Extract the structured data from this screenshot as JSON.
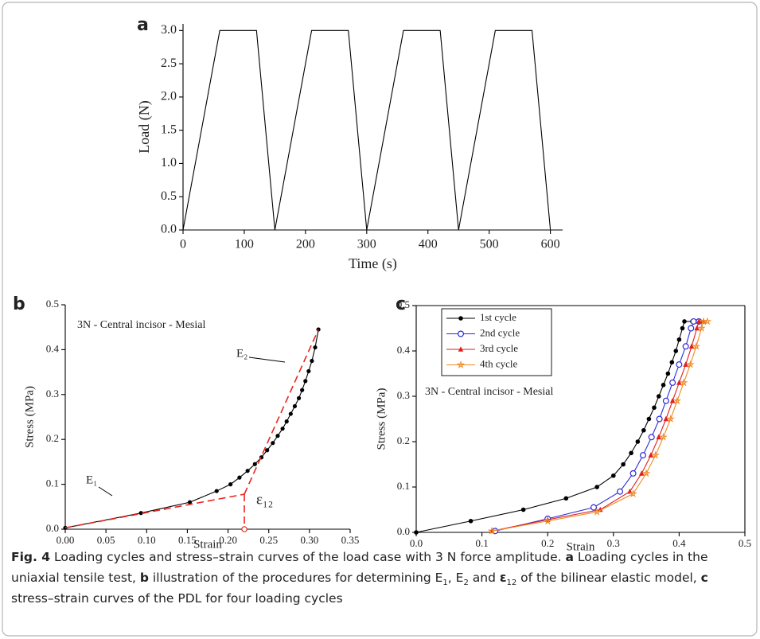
{
  "chart_data": [
    {
      "type": "line",
      "panel": "a",
      "x_label": "Time (s)",
      "y_label": "Load (N)",
      "xlim": [
        0,
        620
      ],
      "ylim": [
        0,
        3.1
      ],
      "xticks": [
        0,
        100,
        200,
        300,
        400,
        500,
        600
      ],
      "yticks": [
        {
          "value": 0,
          "label": "0.0"
        },
        0.5,
        {
          "value": 1,
          "label": "1.0"
        },
        1.5,
        {
          "value": 2,
          "label": "2.0"
        },
        2.5,
        {
          "value": 3,
          "label": "3.0"
        }
      ],
      "series": [
        {
          "color": "#000000",
          "marker": "none",
          "x": [
            0,
            60,
            120,
            150,
            210,
            270,
            300,
            360,
            420,
            450,
            510,
            570,
            600
          ],
          "values": [
            0,
            3,
            3,
            0,
            3,
            3,
            0,
            3,
            3,
            0,
            3,
            3,
            0
          ]
        }
      ]
    },
    {
      "type": "line",
      "panel": "b",
      "x_label": "Strain",
      "y_label": "Stress (MPa)",
      "xlim": [
        0,
        0.35
      ],
      "ylim": [
        0,
        0.5
      ],
      "xticks": [
        {
          "value": 0,
          "label": "0.00"
        },
        0.05,
        {
          "value": 0.1,
          "label": "0.10"
        },
        0.15,
        {
          "value": 0.2,
          "label": "0.20"
        },
        0.25,
        {
          "value": 0.3,
          "label": "0.30"
        },
        0.35
      ],
      "yticks": [
        {
          "value": 0,
          "label": "0.0"
        },
        0.1,
        0.2,
        0.3,
        0.4,
        0.5
      ],
      "annotations": [
        "3N - Central incisor - Mesial",
        "E₁",
        "E₂",
        "ε₁₂"
      ],
      "series": [
        {
          "color": "#000000",
          "marker": "circle",
          "x": [
            0,
            0.093,
            0.153,
            0.186,
            0.203,
            0.214,
            0.224,
            0.233,
            0.241,
            0.248,
            0.255,
            0.261,
            0.267,
            0.272,
            0.277,
            0.282,
            0.287,
            0.291,
            0.295,
            0.299,
            0.303,
            0.307,
            0.311
          ],
          "values": [
            0.003,
            0.036,
            0.06,
            0.085,
            0.1,
            0.115,
            0.13,
            0.145,
            0.16,
            0.176,
            0.192,
            0.208,
            0.224,
            0.24,
            0.257,
            0.274,
            0.292,
            0.31,
            0.33,
            0.352,
            0.375,
            0.405,
            0.445
          ]
        },
        {
          "color": "#e8251f",
          "marker": "none",
          "dashed": true,
          "x": [
            0,
            0.22
          ],
          "values": [
            0.003,
            0.078
          ]
        },
        {
          "color": "#e8251f",
          "marker": "none",
          "dashed": true,
          "x": [
            0.22,
            0.311
          ],
          "values": [
            0.078,
            0.445
          ]
        },
        {
          "color": "#e8251f",
          "marker": "none",
          "dashed": true,
          "x": [
            0.22,
            0.22
          ],
          "values": [
            0.078,
            0
          ]
        },
        {
          "color": "#e8251f",
          "marker": "open-circle",
          "x": [
            0.22
          ],
          "values": [
            0
          ]
        }
      ]
    },
    {
      "type": "line",
      "panel": "c",
      "x_label": "Strain",
      "y_label": "Stress (MPa)",
      "xlim": [
        0,
        0.5
      ],
      "ylim": [
        0,
        0.5
      ],
      "legend": "upper left",
      "frame": true,
      "xticks": [
        {
          "value": 0,
          "label": "0.0"
        },
        0.1,
        0.2,
        0.3,
        0.4,
        0.5
      ],
      "yticks": [
        {
          "value": 0,
          "label": "0.0"
        },
        0.1,
        0.2,
        0.3,
        0.4,
        0.5
      ],
      "annotations": [
        "3N - Central incisor - Mesial"
      ],
      "series": [
        {
          "name": "1st cycle",
          "color": "#000000",
          "marker": "circle",
          "x": [
            0,
            0.083,
            0.163,
            0.228,
            0.275,
            0.3,
            0.315,
            0.327,
            0.337,
            0.346,
            0.354,
            0.362,
            0.369,
            0.376,
            0.383,
            0.389,
            0.395,
            0.4,
            0.405,
            0.408,
            0.42
          ],
          "values": [
            0,
            0.025,
            0.05,
            0.075,
            0.1,
            0.125,
            0.15,
            0.175,
            0.2,
            0.225,
            0.25,
            0.275,
            0.3,
            0.325,
            0.35,
            0.375,
            0.4,
            0.425,
            0.45,
            0.465,
            0.465
          ]
        },
        {
          "name": "2nd cycle",
          "color": "#2b2bd6",
          "marker": "open-circle",
          "x": [
            0.12,
            0.2,
            0.27,
            0.31,
            0.33,
            0.345,
            0.358,
            0.37,
            0.38,
            0.39,
            0.4,
            0.41,
            0.418,
            0.422,
            0.43
          ],
          "values": [
            0.003,
            0.03,
            0.055,
            0.09,
            0.13,
            0.17,
            0.21,
            0.25,
            0.29,
            0.33,
            0.37,
            0.41,
            0.45,
            0.465,
            0.465
          ]
        },
        {
          "name": "3rd cycle",
          "color": "#e01e1e",
          "marker": "triangle",
          "x": [
            0.115,
            0.2,
            0.28,
            0.325,
            0.343,
            0.357,
            0.369,
            0.38,
            0.39,
            0.4,
            0.41,
            0.419,
            0.427,
            0.43,
            0.437
          ],
          "values": [
            0.003,
            0.028,
            0.05,
            0.09,
            0.13,
            0.17,
            0.21,
            0.25,
            0.29,
            0.33,
            0.37,
            0.41,
            0.45,
            0.465,
            0.465
          ]
        },
        {
          "name": "4th cycle",
          "color": "#f08a24",
          "marker": "star",
          "x": [
            0.115,
            0.2,
            0.275,
            0.33,
            0.35,
            0.364,
            0.376,
            0.387,
            0.397,
            0.407,
            0.417,
            0.426,
            0.434,
            0.437,
            0.443
          ],
          "values": [
            0.003,
            0.025,
            0.045,
            0.085,
            0.13,
            0.17,
            0.21,
            0.25,
            0.29,
            0.33,
            0.37,
            0.41,
            0.45,
            0.465,
            0.465
          ]
        }
      ]
    }
  ],
  "caption": {
    "runs": [
      {
        "text": "Fig. 4",
        "style": "bold"
      },
      {
        "text": "  Loading cycles and stress–strain curves of the load case with 3 N force amplitude. "
      },
      {
        "text": "a",
        "style": "bold"
      },
      {
        "text": " Loading cycles in the uniaxial tensile test, "
      },
      {
        "text": "b",
        "style": "bold"
      },
      {
        "text": " illustration of the procedures for determining E"
      },
      {
        "text": "1",
        "style": "sub"
      },
      {
        "text": ", E"
      },
      {
        "text": "2",
        "style": "sub"
      },
      {
        "text": " and "
      },
      {
        "text": "ε",
        "style": "bold"
      },
      {
        "text": "12",
        "style": "sub"
      },
      {
        "text": " of the bilinear elastic model, "
      },
      {
        "text": "c",
        "style": "bold"
      },
      {
        "text": " stress–strain curves of the PDL for four loading cycles"
      }
    ]
  }
}
